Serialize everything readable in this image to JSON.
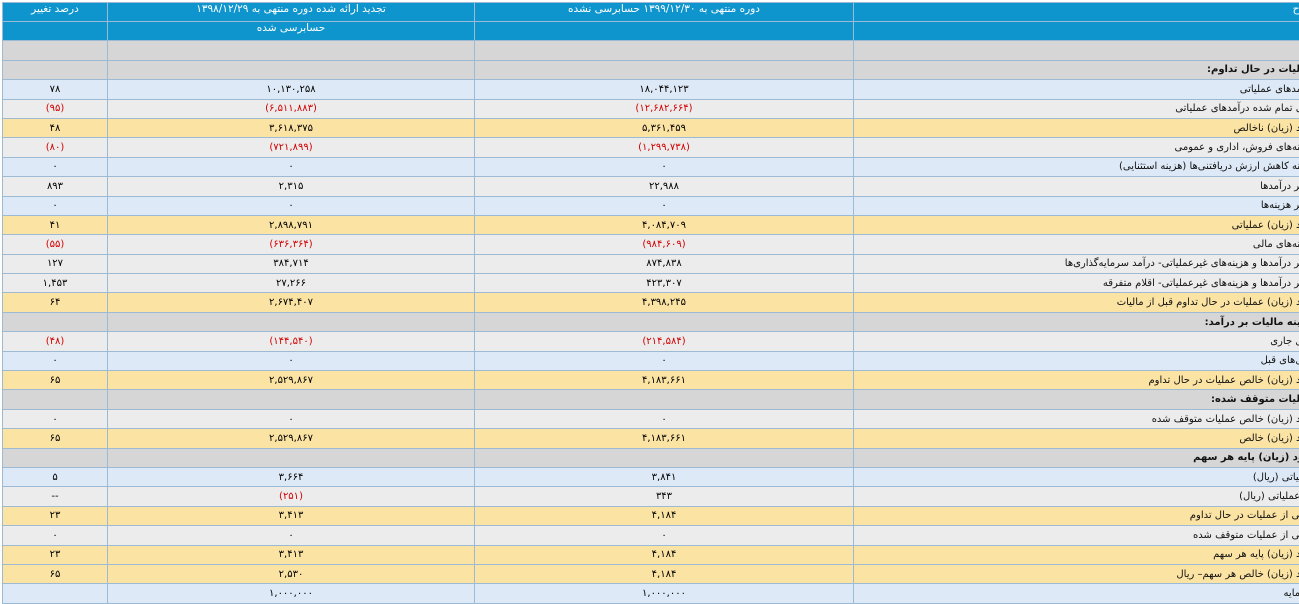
{
  "header": {
    "desc": "شرح",
    "current": "دوره منتهی به ۱۳۹۹/۱۲/۳۰ حسابرسی نشده",
    "previous_line1": "تجدید ارائه شده دوره منتهی به ۱۳۹۸/۱۲/۲۹",
    "previous_line2": "حسابرسی شده",
    "pct": "درصد تغییر"
  },
  "rows": [
    {
      "type": "blank",
      "cells": [
        "",
        "",
        "",
        ""
      ]
    },
    {
      "type": "sec",
      "cells": [
        "عملیات در حال تداوم:",
        "",
        "",
        ""
      ]
    },
    {
      "type": "blue",
      "cells": [
        "درآمدهای عملیاتی",
        "۱۸,۰۴۴,۱۲۳",
        "۱۰,۱۳۰,۲۵۸",
        "۷۸"
      ],
      "neg": [
        false,
        false,
        false
      ]
    },
    {
      "type": "gray",
      "cells": [
        "بهای تمام شده درآمدهای عملیاتی",
        "(۱۲,۶۸۲,۶۶۴)",
        "(۶,۵۱۱,۸۸۳)",
        "(۹۵)"
      ],
      "neg": [
        true,
        true,
        true
      ]
    },
    {
      "type": "yellow",
      "cells": [
        "سود (زیان) ناخالص",
        "۵,۳۶۱,۴۵۹",
        "۳,۶۱۸,۳۷۵",
        "۴۸"
      ],
      "neg": [
        false,
        false,
        false
      ]
    },
    {
      "type": "gray",
      "cells": [
        "هزینه‌های فروش، اداری و عمومی",
        "(۱,۲۹۹,۷۳۸)",
        "(۷۲۱,۸۹۹)",
        "(۸۰)"
      ],
      "neg": [
        true,
        true,
        true
      ]
    },
    {
      "type": "blue",
      "cells": [
        "هزینه کاهش ارزش دریافتنی‌ها (هزینه استثنایی)",
        "۰",
        "۰",
        "۰"
      ],
      "neg": [
        false,
        false,
        false
      ]
    },
    {
      "type": "gray",
      "cells": [
        "سایر درآمدها",
        "۲۲,۹۸۸",
        "۲,۳۱۵",
        "۸۹۳"
      ],
      "neg": [
        false,
        false,
        false
      ]
    },
    {
      "type": "blue",
      "cells": [
        "سایر هزینه‌ها",
        "۰",
        "۰",
        "۰"
      ],
      "neg": [
        false,
        false,
        false
      ]
    },
    {
      "type": "yellow",
      "cells": [
        "سود (زیان) عملیاتی",
        "۴,۰۸۴,۷۰۹",
        "۲,۸۹۸,۷۹۱",
        "۴۱"
      ],
      "neg": [
        false,
        false,
        false
      ]
    },
    {
      "type": "gray",
      "cells": [
        "هزینه‌های مالی",
        "(۹۸۴,۶۰۹)",
        "(۶۳۶,۳۶۴)",
        "(۵۵)"
      ],
      "neg": [
        true,
        true,
        true
      ]
    },
    {
      "type": "gray",
      "cells": [
        "سایر درآمدها و هزینه‌های غیرعملیاتی- درآمد سرمایه‌گذاری‌ها",
        "۸۷۴,۸۳۸",
        "۳۸۴,۷۱۴",
        "۱۲۷"
      ],
      "neg": [
        false,
        false,
        false
      ]
    },
    {
      "type": "gray",
      "cells": [
        "سایر درآمدها و هزینه‌های غیرعملیاتی- اقلام متفرقه",
        "۴۲۳,۳۰۷",
        "۲۷,۲۶۶",
        "۱,۴۵۳"
      ],
      "neg": [
        false,
        false,
        false
      ]
    },
    {
      "type": "yellow",
      "cells": [
        "سود (زیان) عملیات در حال تداوم قبل از مالیات",
        "۴,۳۹۸,۲۴۵",
        "۲,۶۷۴,۴۰۷",
        "۶۴"
      ],
      "neg": [
        false,
        false,
        false
      ]
    },
    {
      "type": "sec",
      "cells": [
        "هزینه مالیات بر درآمد:",
        "",
        "",
        ""
      ]
    },
    {
      "type": "gray",
      "cells": [
        "سال جاری",
        "(۲۱۴,۵۸۴)",
        "(۱۴۴,۵۴۰)",
        "(۴۸)"
      ],
      "neg": [
        true,
        true,
        true
      ]
    },
    {
      "type": "blue",
      "cells": [
        "سال‌های قبل",
        "۰",
        "۰",
        "۰"
      ],
      "neg": [
        false,
        false,
        false
      ]
    },
    {
      "type": "yellow",
      "cells": [
        "سود (زیان) خالص عملیات در حال تداوم",
        "۴,۱۸۳,۶۶۱",
        "۲,۵۲۹,۸۶۷",
        "۶۵"
      ],
      "neg": [
        false,
        false,
        false
      ]
    },
    {
      "type": "sec",
      "cells": [
        "عملیات متوقف شده:",
        "",
        "",
        ""
      ]
    },
    {
      "type": "gray",
      "cells": [
        "سود (زیان) خالص عملیات متوقف شده",
        "۰",
        "۰",
        "۰"
      ],
      "neg": [
        false,
        false,
        false
      ]
    },
    {
      "type": "yellow",
      "cells": [
        "سود (زیان) خالص",
        "۴,۱۸۳,۶۶۱",
        "۲,۵۲۹,۸۶۷",
        "۶۵"
      ],
      "neg": [
        false,
        false,
        false
      ]
    },
    {
      "type": "sec",
      "cells": [
        "سود (زیان) پایه هر سهم",
        "",
        "",
        ""
      ]
    },
    {
      "type": "blue",
      "cells": [
        "عملیاتی (ریال)",
        "۳,۸۴۱",
        "۳,۶۶۴",
        "۵"
      ],
      "neg": [
        false,
        false,
        false
      ]
    },
    {
      "type": "gray",
      "cells": [
        "غیرعملیاتی (ریال)",
        "۳۴۳",
        "(۲۵۱)",
        "--"
      ],
      "neg": [
        false,
        true,
        false
      ]
    },
    {
      "type": "yellow",
      "cells": [
        "ناشی از عملیات در حال تداوم",
        "۴,۱۸۴",
        "۳,۴۱۳",
        "۲۳"
      ],
      "neg": [
        false,
        false,
        false
      ]
    },
    {
      "type": "gray",
      "cells": [
        "ناشی از عملیات متوقف شده",
        "۰",
        "۰",
        "۰"
      ],
      "neg": [
        false,
        false,
        false
      ]
    },
    {
      "type": "yellow",
      "cells": [
        "سود (زیان) پایه هر سهم",
        "۴,۱۸۴",
        "۳,۴۱۳",
        "۲۳"
      ],
      "neg": [
        false,
        false,
        false
      ]
    },
    {
      "type": "yellow",
      "cells": [
        "سود (زیان) خالص هر سهم– ریال",
        "۴,۱۸۴",
        "۲,۵۳۰",
        "۶۵"
      ],
      "neg": [
        false,
        false,
        false
      ]
    },
    {
      "type": "blue",
      "cells": [
        "سرمایه",
        "۱,۰۰۰,۰۰۰",
        "۱,۰۰۰,۰۰۰",
        ""
      ],
      "neg": [
        false,
        false,
        false
      ]
    }
  ]
}
